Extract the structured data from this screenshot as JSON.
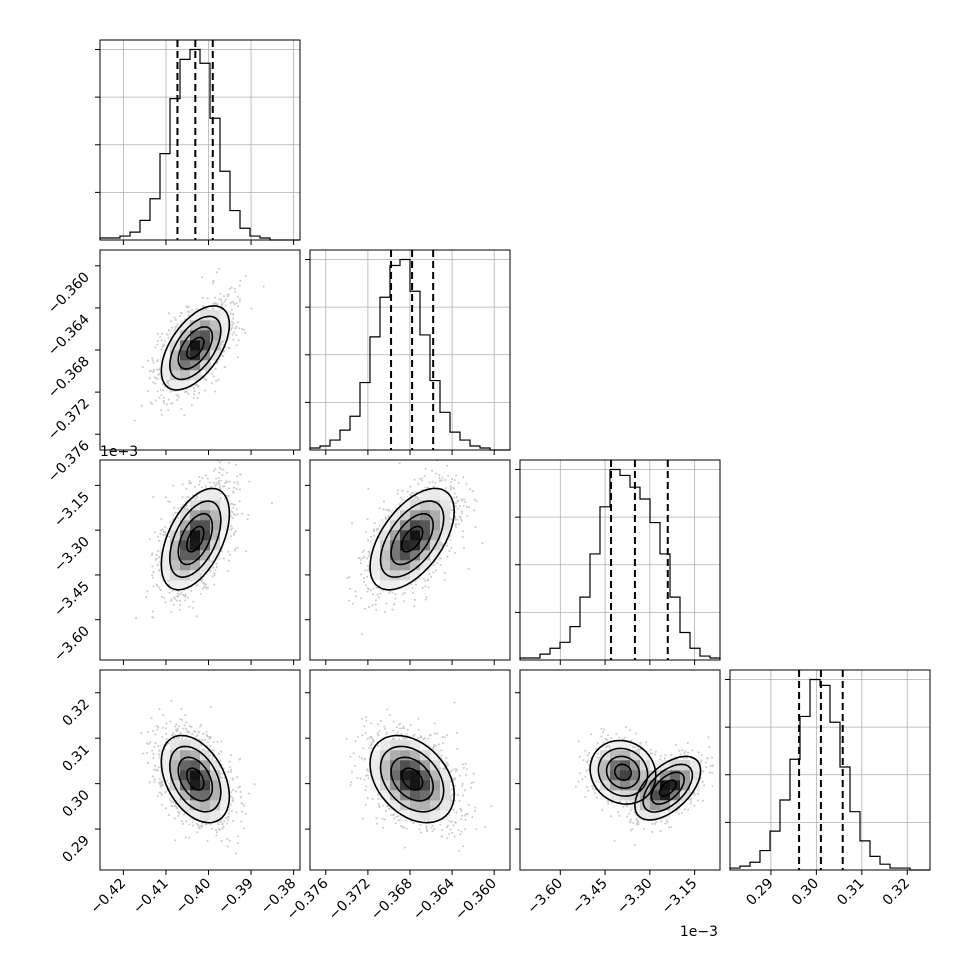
{
  "chart_data": {
    "type": "corner",
    "grid": true,
    "colors": {
      "hist": "#000000",
      "contour": "#000000",
      "density": "#000000",
      "points": "#a0a0a0",
      "grid": "#b0b0b0",
      "quantile": "#000000"
    },
    "parameters": [
      {
        "offset_text": "",
        "range": [
          -0.4255,
          -0.3785
        ],
        "ticks": [
          -0.42,
          -0.41,
          -0.4,
          -0.39,
          -0.38
        ],
        "tick_labels": [
          "−0.42",
          "−0.41",
          "−0.40",
          "−0.39",
          "−0.38"
        ],
        "quantiles": [
          -0.4073,
          -0.4031,
          -0.399
        ],
        "hist_edges_start": -0.4255,
        "hist_bin_width": 0.00235,
        "hist_counts": [
          1,
          1,
          2,
          4,
          10,
          21,
          44,
          72,
          92,
          97,
          90,
          62,
          35,
          15,
          6,
          2,
          1,
          0,
          0,
          0
        ]
      },
      {
        "offset_text": "",
        "range": [
          -0.3775,
          -0.3585
        ],
        "ticks": [
          -0.376,
          -0.372,
          -0.368,
          -0.364,
          -0.36
        ],
        "tick_labels": [
          "−0.376",
          "−0.372",
          "−0.368",
          "−0.364",
          "−0.360"
        ],
        "quantiles": [
          -0.3698,
          -0.3678,
          -0.3658
        ],
        "hist_edges_start": -0.3775,
        "hist_bin_width": 0.00095,
        "hist_counts": [
          1,
          2,
          5,
          10,
          17,
          34,
          57,
          77,
          93,
          96,
          80,
          58,
          35,
          19,
          9,
          5,
          2,
          1,
          0,
          0
        ]
      },
      {
        "offset_text": "1e−3",
        "range": [
          -3.735,
          -3.065
        ],
        "ticks": [
          -3.6,
          -3.45,
          -3.3,
          -3.15
        ],
        "tick_labels": [
          "−3.60",
          "−3.45",
          "−3.30",
          "−3.15"
        ],
        "quantiles": [
          -3.43,
          -3.35,
          -3.24
        ],
        "hist_edges_start": -3.735,
        "hist_bin_width": 0.0335,
        "hist_counts": [
          1,
          1,
          3,
          6,
          9,
          17,
          32,
          54,
          78,
          97,
          94,
          88,
          82,
          70,
          54,
          32,
          14,
          6,
          2,
          1
        ]
      },
      {
        "offset_text": "",
        "range": [
          0.281,
          0.325
        ],
        "ticks": [
          0.29,
          0.3,
          0.31,
          0.32
        ],
        "tick_labels": [
          "0.29",
          "0.30",
          "0.31",
          "0.32"
        ],
        "quantiles": [
          0.2962,
          0.301,
          0.3058
        ],
        "hist_edges_start": 0.281,
        "hist_bin_width": 0.0022,
        "hist_counts": [
          1,
          2,
          4,
          10,
          20,
          36,
          57,
          79,
          98,
          95,
          76,
          53,
          30,
          15,
          7,
          3,
          1,
          1,
          0,
          0
        ]
      }
    ],
    "left_tick_params": [
      null,
      1,
      2,
      3
    ],
    "bottom_tick_params": [
      0,
      1,
      2,
      3
    ],
    "pair_densities": [
      {
        "row": 1,
        "col": 0,
        "blobs": [
          {
            "x": -0.4031,
            "y": -0.3678,
            "sx": 0.004,
            "sy": 0.002,
            "rho": 0.55,
            "w": 1.0
          }
        ]
      },
      {
        "row": 2,
        "col": 0,
        "blobs": [
          {
            "x": -0.4031,
            "y": -3.33,
            "sx": 0.004,
            "sy": 0.085,
            "rho": 0.5,
            "w": 1.0
          }
        ]
      },
      {
        "row": 2,
        "col": 1,
        "blobs": [
          {
            "x": -0.3678,
            "y": -3.33,
            "sx": 0.002,
            "sy": 0.085,
            "rho": 0.55,
            "w": 1.0
          }
        ]
      },
      {
        "row": 3,
        "col": 0,
        "blobs": [
          {
            "x": -0.4031,
            "y": 0.301,
            "sx": 0.004,
            "sy": 0.0048,
            "rho": -0.4,
            "w": 1.0
          }
        ]
      },
      {
        "row": 3,
        "col": 1,
        "blobs": [
          {
            "x": -0.3678,
            "y": 0.301,
            "sx": 0.002,
            "sy": 0.0048,
            "rho": -0.35,
            "w": 1.0
          }
        ]
      },
      {
        "row": 3,
        "col": 2,
        "blobs": [
          {
            "x": -3.39,
            "y": 0.3025,
            "sx": 0.055,
            "sy": 0.0035,
            "rho": -0.1,
            "w": 0.85
          },
          {
            "x": -3.24,
            "y": 0.299,
            "sx": 0.055,
            "sy": 0.0035,
            "rho": 0.55,
            "w": 1.0
          }
        ]
      }
    ]
  }
}
